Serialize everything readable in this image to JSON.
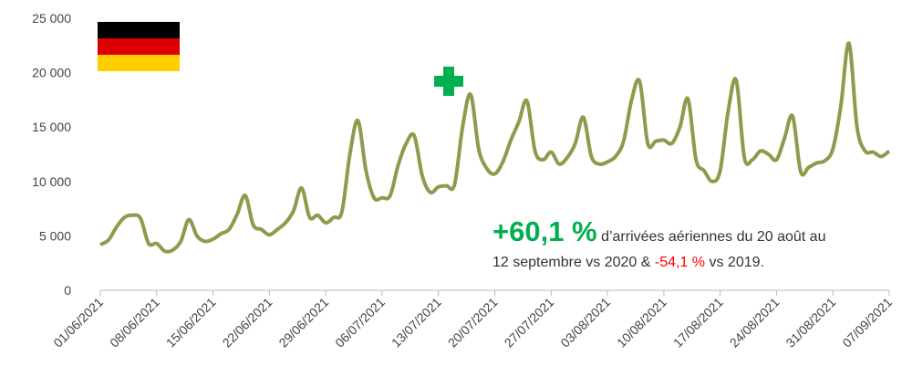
{
  "chart_data": {
    "type": "line",
    "categories": [
      "01/06/2021",
      null,
      null,
      null,
      null,
      null,
      null,
      "08/06/2021",
      null,
      null,
      null,
      null,
      null,
      null,
      "15/06/2021",
      null,
      null,
      null,
      null,
      null,
      null,
      "22/06/2021",
      null,
      null,
      null,
      null,
      null,
      null,
      "29/06/2021",
      null,
      null,
      null,
      null,
      null,
      null,
      "06/07/2021",
      null,
      null,
      null,
      null,
      null,
      null,
      "13/07/2021",
      null,
      null,
      null,
      null,
      null,
      null,
      "20/07/2021",
      null,
      null,
      null,
      null,
      null,
      null,
      "27/07/2021",
      null,
      null,
      null,
      null,
      null,
      null,
      "03/08/2021",
      null,
      null,
      null,
      null,
      null,
      null,
      "10/08/2021",
      null,
      null,
      null,
      null,
      null,
      null,
      "17/08/2021",
      null,
      null,
      null,
      null,
      null,
      null,
      "24/08/2021",
      null,
      null,
      null,
      null,
      null,
      null,
      "31/08/2021",
      null,
      null,
      null,
      null,
      null,
      null,
      "07/09/2021"
    ],
    "series": [
      {
        "color": "#8c9c4c",
        "values": [
          4200,
          4600,
          5800,
          6700,
          6900,
          6600,
          4300,
          4300,
          3600,
          3700,
          4500,
          6500,
          5000,
          4500,
          4700,
          5200,
          5600,
          7000,
          8700,
          6000,
          5600,
          5100,
          5600,
          6200,
          7300,
          9400,
          6700,
          6900,
          6200,
          6700,
          7200,
          12500,
          15600,
          11000,
          8500,
          8500,
          8700,
          11500,
          13500,
          14200,
          10500,
          9000,
          9500,
          9600,
          9700,
          15000,
          18000,
          13000,
          11200,
          10700,
          11800,
          13800,
          15500,
          17400,
          12800,
          12000,
          12700,
          11600,
          12200,
          13500,
          15900,
          12300,
          11600,
          11800,
          12300,
          13700,
          17500,
          19200,
          13500,
          13700,
          13800,
          13500,
          15000,
          17600,
          12000,
          11000,
          10000,
          11000,
          16500,
          19300,
          12200,
          12000,
          12800,
          12500,
          12000,
          14000,
          16000,
          10900,
          11300,
          11700,
          11900,
          13000,
          17000,
          22700,
          15000,
          12800,
          12700,
          12300,
          12800
        ]
      }
    ],
    "ylim": [
      0,
      25000
    ],
    "yticks": [
      0,
      {
        "value": 5000,
        "label": "5 000"
      },
      {
        "value": 10000,
        "label": "10 000"
      },
      {
        "value": 15000,
        "label": "15 000"
      },
      {
        "value": 20000,
        "label": "20 000"
      },
      {
        "value": 25000,
        "label": "25 000"
      }
    ],
    "annotation": {
      "highlight": "+60,1 %",
      "line1": " d’arrivées aériennes du 20 août au",
      "line2": "12 septembre vs 2020 & ",
      "negative": "-54,1 %",
      "line2_end": " vs 2019."
    }
  }
}
